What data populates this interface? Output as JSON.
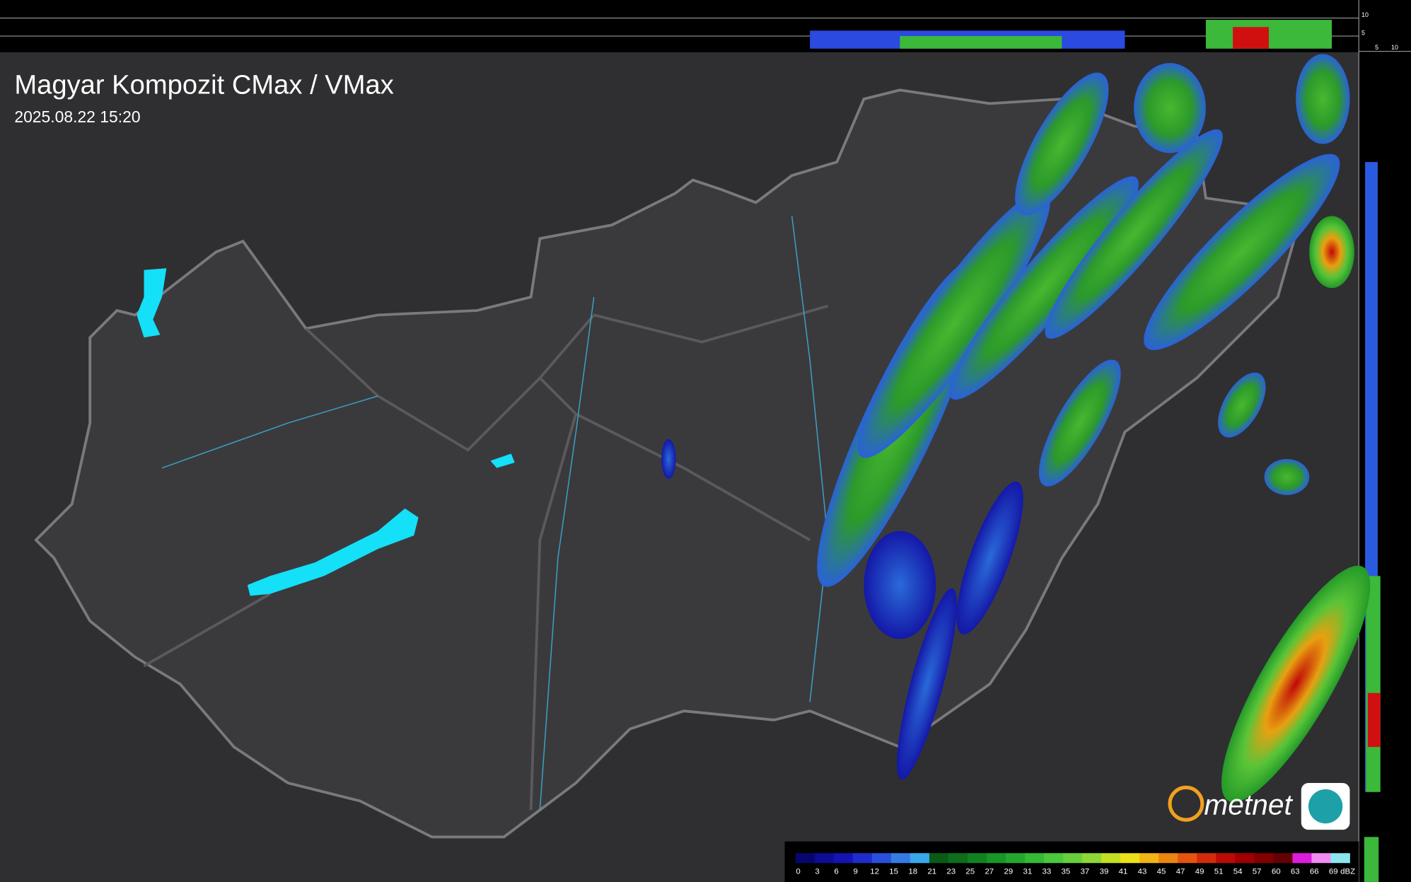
{
  "header": {
    "title": "Magyar Kompozit CMax / VMax",
    "timestamp": "2025.08.22 15:20"
  },
  "profile_axis": {
    "top_labels": [
      "10",
      "5"
    ],
    "side_labels": [
      "5",
      "10"
    ]
  },
  "legend": {
    "values": [
      "0",
      "3",
      "6",
      "9",
      "12",
      "15",
      "18",
      "21",
      "23",
      "25",
      "27",
      "29",
      "31",
      "33",
      "35",
      "37",
      "39",
      "41",
      "43",
      "45",
      "47",
      "49",
      "51",
      "54",
      "57",
      "60",
      "63",
      "66",
      "69"
    ],
    "colors": [
      "#06066e",
      "#0c0c96",
      "#1414b4",
      "#1e2ccc",
      "#2850dc",
      "#347ce4",
      "#3aa8ec",
      "#0a5a16",
      "#0e6e1a",
      "#128220",
      "#189626",
      "#22a82e",
      "#34ba36",
      "#4cc83c",
      "#68d03c",
      "#8ed834",
      "#c4e020",
      "#ece018",
      "#f0b414",
      "#ec8410",
      "#e4540e",
      "#d42a0c",
      "#bc0a06",
      "#a00000",
      "#820000",
      "#640004",
      "#dc1cdc",
      "#f08cf0",
      "#8ce6f0"
    ],
    "unit": "dBZ"
  },
  "logo": {
    "text": "metnet"
  }
}
